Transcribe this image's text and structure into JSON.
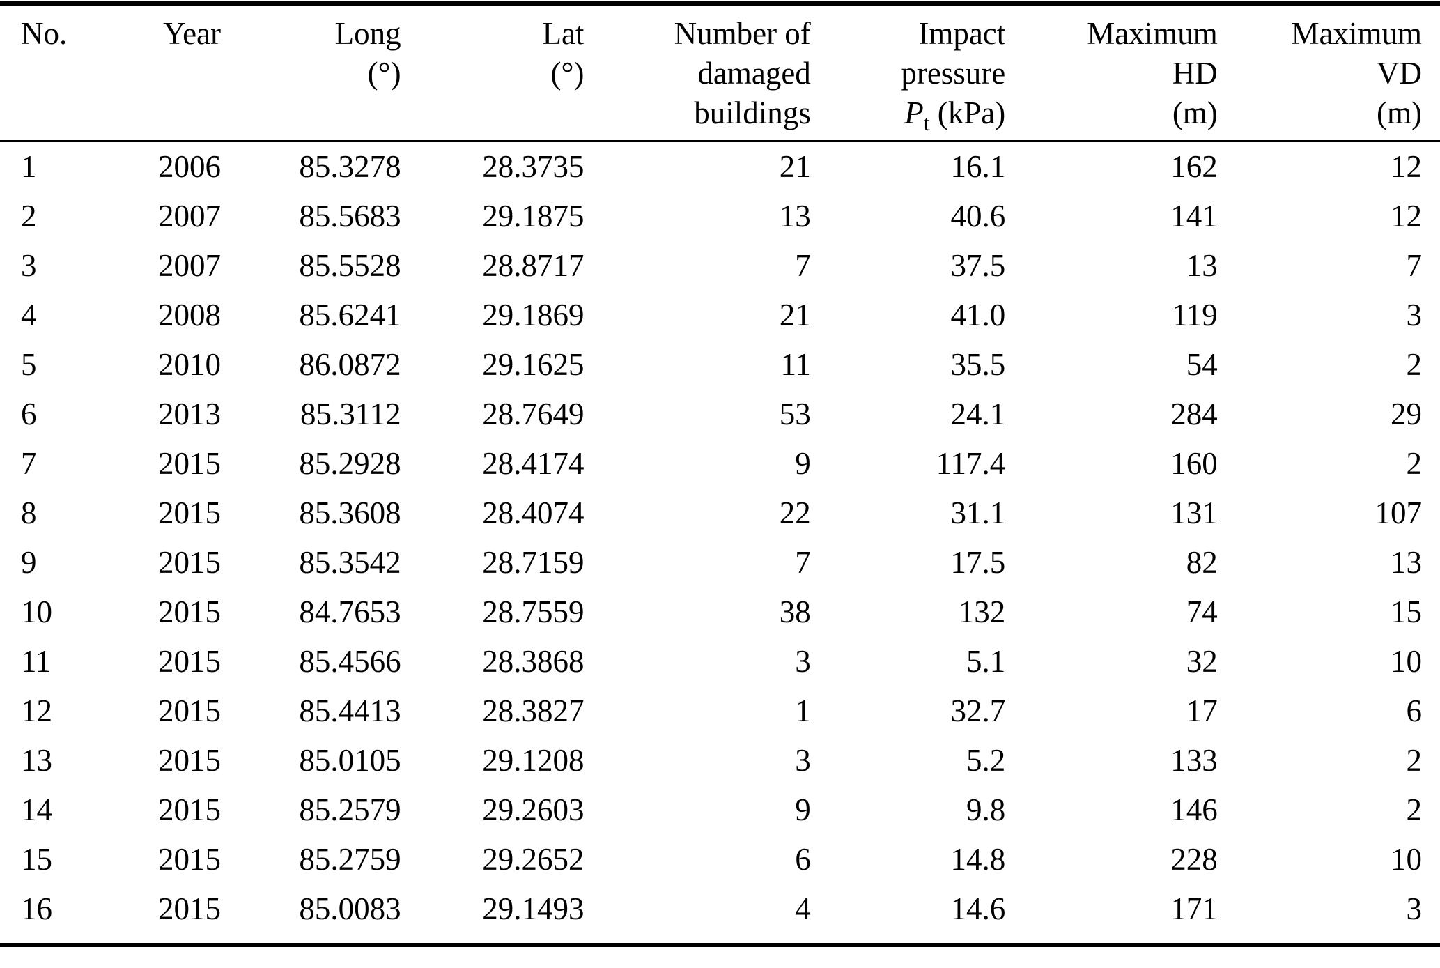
{
  "page": {
    "background": "#ffffff",
    "text_color": "#000000",
    "rule_color": "#000000"
  },
  "chart_data": {
    "type": "table",
    "title": "",
    "columns": [
      "No.",
      "Year",
      "Long (°)",
      "Lat (°)",
      "Number of damaged buildings",
      "Impact pressure Pt (kPa)",
      "Maximum HD (m)",
      "Maximum VD (m)"
    ]
  },
  "table": {
    "headers": {
      "no": "No.",
      "year": "Year",
      "long_line1": "Long",
      "long_line2": "(°)",
      "lat_line1": "Lat",
      "lat_line2": "(°)",
      "damaged_line1": "Number of",
      "damaged_line2": "damaged",
      "damaged_line3": "buildings",
      "impact_line1": "Impact",
      "impact_line2": "pressure",
      "impact_symbol": "P",
      "impact_subscript": "t",
      "impact_unit": " (kPa)",
      "hd_line1": "Maximum",
      "hd_line2": "HD",
      "hd_line3": "(m)",
      "vd_line1": "Maximum",
      "vd_line2": "VD",
      "vd_line3": "(m)"
    },
    "rows": [
      {
        "no": "1",
        "year": "2006",
        "long": "85.3278",
        "lat": "28.3735",
        "damaged": "21",
        "pressure": "16.1",
        "hd": "162",
        "vd": "12"
      },
      {
        "no": "2",
        "year": "2007",
        "long": "85.5683",
        "lat": "29.1875",
        "damaged": "13",
        "pressure": "40.6",
        "hd": "141",
        "vd": "12"
      },
      {
        "no": "3",
        "year": "2007",
        "long": "85.5528",
        "lat": "28.8717",
        "damaged": "7",
        "pressure": "37.5",
        "hd": "13",
        "vd": "7"
      },
      {
        "no": "4",
        "year": "2008",
        "long": "85.6241",
        "lat": "29.1869",
        "damaged": "21",
        "pressure": "41.0",
        "hd": "119",
        "vd": "3"
      },
      {
        "no": "5",
        "year": "2010",
        "long": "86.0872",
        "lat": "29.1625",
        "damaged": "11",
        "pressure": "35.5",
        "hd": "54",
        "vd": "2"
      },
      {
        "no": "6",
        "year": "2013",
        "long": "85.3112",
        "lat": "28.7649",
        "damaged": "53",
        "pressure": "24.1",
        "hd": "284",
        "vd": "29"
      },
      {
        "no": "7",
        "year": "2015",
        "long": "85.2928",
        "lat": "28.4174",
        "damaged": "9",
        "pressure": "117.4",
        "hd": "160",
        "vd": "2"
      },
      {
        "no": "8",
        "year": "2015",
        "long": "85.3608",
        "lat": "28.4074",
        "damaged": "22",
        "pressure": "31.1",
        "hd": "131",
        "vd": "107"
      },
      {
        "no": "9",
        "year": "2015",
        "long": "85.3542",
        "lat": "28.7159",
        "damaged": "7",
        "pressure": "17.5",
        "hd": "82",
        "vd": "13"
      },
      {
        "no": "10",
        "year": "2015",
        "long": "84.7653",
        "lat": "28.7559",
        "damaged": "38",
        "pressure": "132",
        "hd": "74",
        "vd": "15"
      },
      {
        "no": "11",
        "year": "2015",
        "long": "85.4566",
        "lat": "28.3868",
        "damaged": "3",
        "pressure": "5.1",
        "hd": "32",
        "vd": "10"
      },
      {
        "no": "12",
        "year": "2015",
        "long": "85.4413",
        "lat": "28.3827",
        "damaged": "1",
        "pressure": "32.7",
        "hd": "17",
        "vd": "6"
      },
      {
        "no": "13",
        "year": "2015",
        "long": "85.0105",
        "lat": "29.1208",
        "damaged": "3",
        "pressure": "5.2",
        "hd": "133",
        "vd": "2"
      },
      {
        "no": "14",
        "year": "2015",
        "long": "85.2579",
        "lat": "29.2603",
        "damaged": "9",
        "pressure": "9.8",
        "hd": "146",
        "vd": "2"
      },
      {
        "no": "15",
        "year": "2015",
        "long": "85.2759",
        "lat": "29.2652",
        "damaged": "6",
        "pressure": "14.8",
        "hd": "228",
        "vd": "10"
      },
      {
        "no": "16",
        "year": "2015",
        "long": "85.0083",
        "lat": "29.1493",
        "damaged": "4",
        "pressure": "14.6",
        "hd": "171",
        "vd": "3"
      }
    ]
  }
}
